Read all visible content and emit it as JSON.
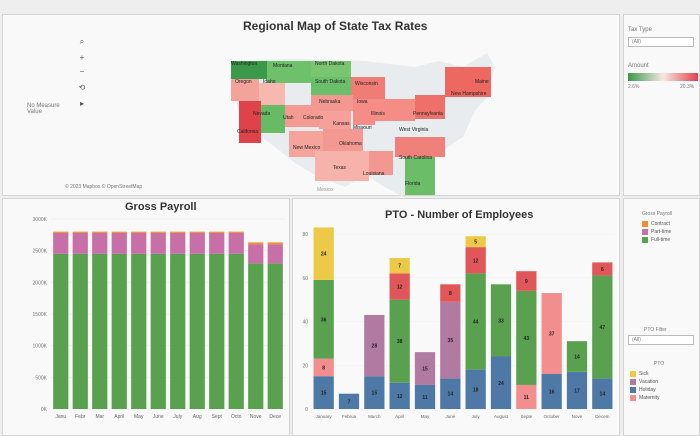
{
  "map": {
    "title": "Regional Map of State Tax Rates",
    "attribution": "© 2023 Mapbox © OpenStreetMap",
    "no_measure": "No Measure Value",
    "states": [
      "Washington",
      "Montana",
      "North Dakota",
      "Oregon",
      "Idaho",
      "South Dakota",
      "Wisconsin",
      "Nebraska",
      "Iowa",
      "New Hampshire",
      "Maine",
      "Nevada",
      "Utah",
      "Colorado",
      "Kansas",
      "Illinois",
      "Pennsylvania",
      "California",
      "Missouri",
      "West Virginia",
      "Oklahoma",
      "New Mexico",
      "South Carolina",
      "Texas",
      "Louisiana",
      "Florida",
      "Mexico"
    ]
  },
  "filters": {
    "tax_type_label": "Tax Type",
    "tax_type_value": "(All)",
    "amount_label": "Amount",
    "amount_min": "2.6%",
    "amount_max": "20.3%",
    "pto_filter_label": "PTO Filter",
    "pto_filter_value": "(All)"
  },
  "legends": {
    "gross_payroll_title": "Gross Payroll",
    "gross_payroll_items": [
      {
        "label": "Contract",
        "color": "#f28e2b"
      },
      {
        "label": "Part-time",
        "color": "#c86fa8"
      },
      {
        "label": "Full-time",
        "color": "#59a14f"
      }
    ],
    "pto_title": "PTO",
    "pto_items": [
      {
        "label": "Sick",
        "color": "#edc948"
      },
      {
        "label": "Vacation",
        "color": "#b07aa1"
      },
      {
        "label": "Holiday",
        "color": "#4e79a7"
      },
      {
        "label": "Maternity",
        "color": "#f28e8e"
      }
    ]
  },
  "chart_data": [
    {
      "type": "bar",
      "title": "Gross Payroll",
      "categories": [
        "Janu",
        "Febr",
        "Mar",
        "April",
        "May",
        "June",
        "July",
        "Aug",
        "Sept",
        "Octo",
        "Nove",
        "Dece"
      ],
      "y_ticks": [
        "0K",
        "500K",
        "1000K",
        "1500K",
        "2000K",
        "2500K",
        "3000K"
      ],
      "ylim": [
        0,
        3000000
      ],
      "series": [
        {
          "name": "Full-time",
          "color": "#59a14f",
          "values": [
            2450000,
            2450000,
            2450000,
            2450000,
            2450000,
            2450000,
            2450000,
            2450000,
            2450000,
            2450000,
            2300000,
            2300000
          ]
        },
        {
          "name": "Part-time",
          "color": "#c86fa8",
          "values": [
            330000,
            330000,
            330000,
            330000,
            330000,
            330000,
            330000,
            330000,
            330000,
            330000,
            300000,
            300000
          ]
        },
        {
          "name": "Contract",
          "color": "#f28e2b",
          "values": [
            20000,
            20000,
            20000,
            20000,
            20000,
            20000,
            20000,
            20000,
            20000,
            20000,
            30000,
            30000
          ]
        }
      ]
    },
    {
      "type": "bar",
      "title": "PTO - Number of Employees",
      "categories": [
        "January",
        "Februa",
        "March",
        "April",
        "May",
        "June",
        "July",
        "August",
        "Septe",
        "October",
        "Nove",
        "Decem"
      ],
      "y_ticks": [
        "0",
        "20",
        "40",
        "60",
        "80"
      ],
      "ylim": [
        0,
        80
      ],
      "series": [
        {
          "name": "Holiday",
          "color": "#4e79a7",
          "values": [
            15,
            7,
            15,
            12,
            11,
            14,
            18,
            24,
            null,
            16,
            17,
            14
          ]
        },
        {
          "name": "Maternity",
          "color": "#f28e8e",
          "values": [
            8,
            null,
            null,
            null,
            null,
            null,
            null,
            null,
            11,
            37,
            null,
            null
          ]
        },
        {
          "name": "Vacation",
          "color": "#b07aa1",
          "values": [
            null,
            null,
            28,
            null,
            15,
            35,
            null,
            null,
            null,
            null,
            null,
            null
          ]
        },
        {
          "name": "Full",
          "color": "#59a14f",
          "values": [
            36,
            null,
            null,
            38,
            null,
            null,
            44,
            33,
            43,
            null,
            14,
            47
          ]
        },
        {
          "name": "Part",
          "color": "#e15759",
          "values": [
            null,
            null,
            null,
            12,
            null,
            8,
            12,
            null,
            9,
            null,
            null,
            6
          ]
        },
        {
          "name": "Sick",
          "color": "#edc948",
          "values": [
            24,
            null,
            null,
            7,
            null,
            null,
            5,
            null,
            null,
            null,
            null,
            null
          ]
        }
      ],
      "data_labels": [
        [
          "15",
          "8",
          "36",
          "24"
        ],
        [
          "7"
        ],
        [
          "15",
          "28"
        ],
        [
          "12",
          "38",
          "12",
          "7"
        ],
        [
          "11",
          "15"
        ],
        [
          "14",
          "35",
          "8"
        ],
        [
          "18",
          "44",
          "12",
          "5"
        ],
        [
          "24",
          "33"
        ],
        [
          "11",
          "43",
          "9"
        ],
        [
          "16",
          "37"
        ],
        [
          "17",
          "14"
        ],
        [
          "14",
          "47",
          "6"
        ]
      ]
    }
  ]
}
